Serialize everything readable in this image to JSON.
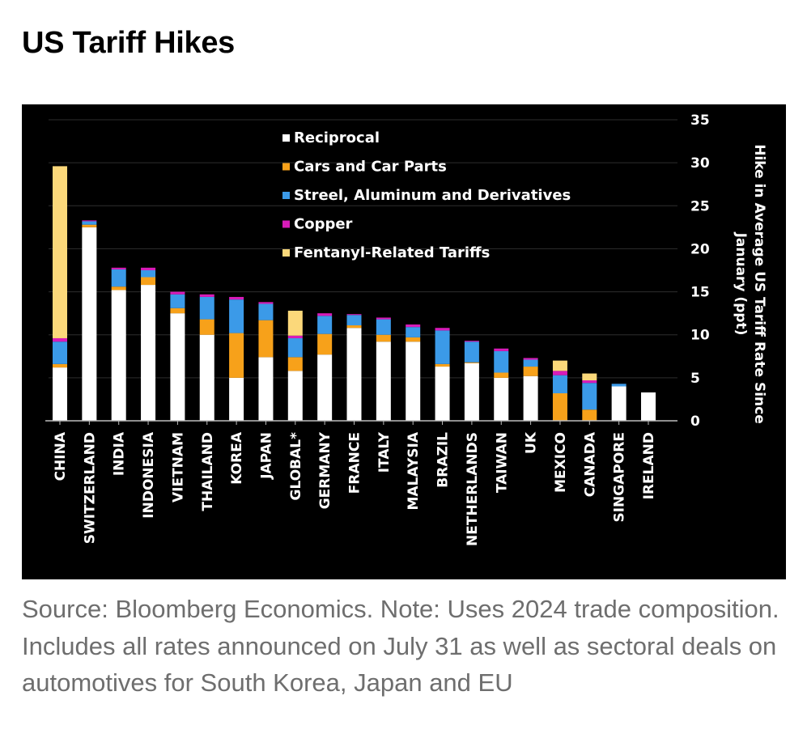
{
  "title": "US Tariff Hikes",
  "source_note": "Source: Bloomberg Economics. Note: Uses 2024 trade composition. Includes all rates announced on July 31 as well as sectoral deals on automotives for South Korea, Japan and EU",
  "colors": {
    "background": "#000000",
    "reciprocal": "#ffffff",
    "cars": "#f7a11a",
    "steel": "#3b9ae8",
    "copper": "#d81bb9",
    "fentanyl": "#fbd87a",
    "gridline": "#2e2e2e",
    "text": "#ffffff"
  },
  "chart_data": {
    "type": "bar",
    "stacked": true,
    "title": "US Tariff Hikes",
    "xlabel": "",
    "ylabel": "Hike in Average US Tariff Rate Since January (ppt)",
    "ylabel_lines": [
      "Hike in Average US Tariff Rate Since",
      "January (ppt)"
    ],
    "ylim": [
      0,
      35
    ],
    "yticks": [
      0,
      5,
      10,
      15,
      20,
      25,
      30,
      35
    ],
    "grid": true,
    "legend_position": "top-center",
    "categories": [
      "CHINA",
      "SWITZERLAND",
      "INDIA",
      "INDONESIA",
      "VIETNAM",
      "THAILAND",
      "KOREA",
      "JAPAN",
      "GLOBAL*",
      "GERMANY",
      "FRANCE",
      "ITALY",
      "MALAYSIA",
      "BRAZIL",
      "NETHERLANDS",
      "TAIWAN",
      "UK",
      "MEXICO",
      "CANADA",
      "SINGAPORE",
      "IRELAND"
    ],
    "series": [
      {
        "name": "Reciprocal",
        "color": "#ffffff",
        "values": [
          6.2,
          22.5,
          15.2,
          15.8,
          12.5,
          10.0,
          5.0,
          7.4,
          5.8,
          7.7,
          10.8,
          9.2,
          9.2,
          6.3,
          6.7,
          5.0,
          5.2,
          0.0,
          0.0,
          4.0,
          3.3
        ]
      },
      {
        "name": "Cars and Car Parts",
        "color": "#f7a11a",
        "values": [
          0.4,
          0.3,
          0.4,
          0.9,
          0.6,
          1.8,
          5.2,
          4.3,
          1.6,
          2.4,
          0.3,
          0.8,
          0.5,
          0.3,
          0.1,
          0.6,
          1.1,
          3.2,
          1.3,
          0.0,
          0.0
        ]
      },
      {
        "name": "Streel, Aluminum and Derivatives",
        "color": "#3b9ae8",
        "values": [
          2.6,
          0.4,
          2.0,
          0.8,
          1.6,
          2.6,
          3.9,
          1.9,
          2.2,
          2.1,
          1.2,
          1.8,
          1.2,
          3.9,
          2.4,
          2.5,
          0.8,
          2.1,
          3.1,
          0.3,
          0.0
        ]
      },
      {
        "name": "Copper",
        "color": "#d81bb9",
        "values": [
          0.4,
          0.1,
          0.2,
          0.3,
          0.3,
          0.3,
          0.3,
          0.2,
          0.3,
          0.3,
          0.1,
          0.2,
          0.3,
          0.3,
          0.1,
          0.3,
          0.2,
          0.5,
          0.3,
          0.0,
          0.0
        ]
      },
      {
        "name": "Fentanyl-Related Tariffs",
        "color": "#fbd87a",
        "values": [
          20.0,
          0.0,
          0.0,
          0.0,
          0.0,
          0.0,
          0.0,
          0.0,
          2.9,
          0.0,
          0.0,
          0.0,
          0.0,
          0.0,
          0.0,
          0.0,
          0.0,
          1.2,
          0.8,
          0.0,
          0.0
        ]
      }
    ]
  }
}
